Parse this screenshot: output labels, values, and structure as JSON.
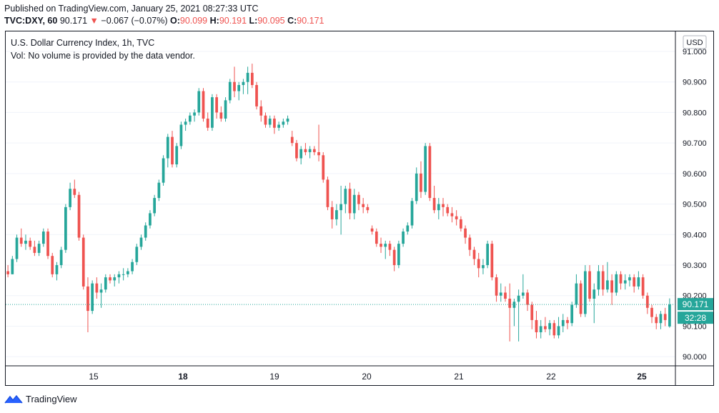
{
  "header": {
    "published": "Published on TradingView.com, January 25, 2021 08:27:33 UTC",
    "symbol": "TVC:DXY, 60",
    "last": "90.171",
    "arrow": "▼",
    "change": "−0.067 (−0.07%)",
    "o_label": "O:",
    "o_value": "90.099",
    "h_label": "H:",
    "h_value": "90.191",
    "l_label": "L:",
    "l_value": "90.095",
    "c_label": "C:",
    "c_value": "90.171"
  },
  "legend": {
    "title": "U.S. Dollar Currency Index, 1h, TVC",
    "volume_note": "Vol: No volume is provided by the data vendor."
  },
  "currency_button": "USD",
  "price_label": "90.171",
  "countdown_label": "32:28",
  "footer": {
    "brand": "TradingView"
  },
  "colors": {
    "up": "#26a69a",
    "down": "#ef5350",
    "text": "#131722",
    "grid": "#f0f3fa"
  },
  "chart_data": {
    "type": "candlestick",
    "title": "U.S. Dollar Currency Index, 1h, TVC",
    "ylim": [
      89.97,
      91.0
    ],
    "y_ticks": [
      "90.000",
      "90.100",
      "90.200",
      "90.300",
      "90.400",
      "90.500",
      "90.600",
      "90.700",
      "90.800",
      "90.900",
      "91.000"
    ],
    "x_ticks": [
      {
        "label": "15",
        "bold": false
      },
      {
        "label": "18",
        "bold": true
      },
      {
        "label": "19",
        "bold": false
      },
      {
        "label": "20",
        "bold": false
      },
      {
        "label": "21",
        "bold": false
      },
      {
        "label": "22",
        "bold": false
      },
      {
        "label": "25",
        "bold": true
      }
    ],
    "last_price": 90.171,
    "ohlc": [
      [
        90.28,
        90.3,
        90.26,
        90.27
      ],
      [
        90.27,
        90.33,
        90.27,
        90.32
      ],
      [
        90.32,
        90.4,
        90.31,
        90.39
      ],
      [
        90.39,
        90.42,
        90.36,
        90.37
      ],
      [
        90.37,
        90.4,
        90.35,
        90.38
      ],
      [
        90.38,
        90.39,
        90.35,
        90.36
      ],
      [
        90.36,
        90.38,
        90.33,
        90.34
      ],
      [
        90.34,
        90.38,
        90.33,
        90.37
      ],
      [
        90.37,
        90.42,
        90.36,
        90.41
      ],
      [
        90.41,
        90.42,
        90.32,
        90.33
      ],
      [
        90.33,
        90.34,
        90.26,
        90.27
      ],
      [
        90.27,
        90.31,
        90.25,
        90.3
      ],
      [
        90.3,
        90.36,
        90.29,
        90.35
      ],
      [
        90.35,
        90.5,
        90.34,
        90.49
      ],
      [
        90.49,
        90.57,
        90.48,
        90.55
      ],
      [
        90.55,
        90.58,
        90.52,
        90.53
      ],
      [
        90.53,
        90.54,
        90.38,
        90.39
      ],
      [
        90.39,
        90.4,
        90.22,
        90.23
      ],
      [
        90.23,
        90.26,
        90.08,
        90.15
      ],
      [
        90.15,
        90.25,
        90.14,
        90.24
      ],
      [
        90.24,
        90.26,
        90.19,
        90.21
      ],
      [
        90.21,
        90.24,
        90.16,
        90.22
      ],
      [
        90.22,
        90.27,
        90.21,
        90.26
      ],
      [
        90.26,
        90.27,
        90.24,
        90.25
      ],
      [
        90.25,
        90.27,
        90.23,
        90.26
      ],
      [
        90.26,
        90.28,
        90.24,
        90.27
      ],
      [
        90.27,
        90.29,
        90.25,
        90.27
      ],
      [
        90.27,
        90.29,
        90.26,
        90.28
      ],
      [
        90.28,
        90.32,
        90.27,
        90.31
      ],
      [
        90.31,
        90.37,
        90.3,
        90.36
      ],
      [
        90.36,
        90.4,
        90.35,
        90.39
      ],
      [
        90.39,
        90.44,
        90.38,
        90.43
      ],
      [
        90.43,
        90.48,
        90.42,
        90.47
      ],
      [
        90.47,
        90.53,
        90.46,
        90.52
      ],
      [
        90.52,
        90.58,
        90.51,
        90.57
      ],
      [
        90.57,
        90.66,
        90.56,
        90.65
      ],
      [
        90.65,
        90.73,
        90.62,
        90.72
      ],
      [
        90.72,
        90.74,
        90.62,
        90.63
      ],
      [
        90.63,
        90.7,
        90.62,
        90.69
      ],
      [
        90.69,
        90.77,
        90.68,
        90.76
      ],
      [
        90.76,
        90.78,
        90.74,
        90.77
      ],
      [
        90.77,
        90.8,
        90.76,
        90.79
      ],
      [
        90.79,
        90.81,
        90.77,
        90.8
      ],
      [
        90.8,
        90.88,
        90.79,
        90.87
      ],
      [
        90.87,
        90.88,
        90.77,
        90.78
      ],
      [
        90.78,
        90.8,
        90.74,
        90.75
      ],
      [
        90.75,
        90.86,
        90.74,
        90.85
      ],
      [
        90.85,
        90.86,
        90.78,
        90.8
      ],
      [
        90.8,
        90.82,
        90.77,
        90.78
      ],
      [
        90.78,
        90.85,
        90.77,
        90.84
      ],
      [
        90.84,
        90.91,
        90.83,
        90.9
      ],
      [
        90.9,
        90.95,
        90.85,
        90.87
      ],
      [
        90.87,
        90.9,
        90.84,
        90.89
      ],
      [
        90.89,
        90.91,
        90.86,
        90.9
      ],
      [
        90.9,
        90.95,
        90.86,
        90.93
      ],
      [
        90.93,
        90.96,
        90.88,
        90.89
      ],
      [
        90.89,
        90.9,
        90.81,
        90.82
      ],
      [
        90.82,
        90.84,
        90.77,
        90.79
      ],
      [
        90.79,
        90.8,
        90.75,
        90.76
      ],
      [
        90.76,
        90.79,
        90.75,
        90.78
      ],
      [
        90.78,
        90.79,
        90.73,
        90.75
      ],
      [
        90.75,
        90.77,
        90.74,
        90.76
      ],
      [
        90.76,
        90.78,
        90.75,
        90.77
      ],
      [
        90.77,
        90.79,
        90.76,
        90.78
      ],
      [
        90.72,
        90.74,
        90.69,
        90.7
      ],
      [
        90.7,
        90.71,
        90.64,
        90.65
      ],
      [
        90.65,
        90.69,
        90.63,
        90.68
      ],
      [
        90.68,
        90.7,
        90.66,
        90.67
      ],
      [
        90.67,
        90.69,
        90.65,
        90.68
      ],
      [
        90.68,
        90.69,
        90.66,
        90.67
      ],
      [
        90.67,
        90.76,
        90.64,
        90.66
      ],
      [
        90.66,
        90.67,
        90.57,
        90.58
      ],
      [
        90.58,
        90.59,
        90.48,
        90.49
      ],
      [
        90.49,
        90.51,
        90.42,
        90.45
      ],
      [
        90.45,
        90.5,
        90.43,
        90.48
      ],
      [
        90.48,
        90.56,
        90.4,
        90.5
      ],
      [
        90.5,
        90.56,
        90.47,
        90.55
      ],
      [
        90.55,
        90.57,
        90.45,
        90.47
      ],
      [
        90.47,
        90.55,
        90.45,
        90.53
      ],
      [
        90.53,
        90.54,
        90.48,
        90.5
      ],
      [
        90.5,
        90.52,
        90.47,
        90.49
      ],
      [
        90.49,
        90.5,
        90.47,
        90.48
      ],
      [
        90.42,
        90.43,
        90.4,
        90.41
      ],
      [
        90.41,
        90.42,
        90.36,
        90.37
      ],
      [
        90.37,
        90.39,
        90.34,
        90.36
      ],
      [
        90.36,
        90.38,
        90.32,
        90.37
      ],
      [
        90.37,
        90.38,
        90.33,
        90.35
      ],
      [
        90.35,
        90.36,
        90.28,
        90.3
      ],
      [
        90.3,
        90.38,
        90.29,
        90.37
      ],
      [
        90.37,
        90.42,
        90.36,
        90.41
      ],
      [
        90.41,
        90.44,
        90.4,
        90.43
      ],
      [
        90.43,
        90.52,
        90.42,
        90.51
      ],
      [
        90.51,
        90.62,
        90.5,
        90.6
      ],
      [
        90.6,
        90.64,
        90.52,
        90.54
      ],
      [
        90.54,
        90.7,
        90.53,
        90.69
      ],
      [
        90.69,
        90.7,
        90.51,
        90.52
      ],
      [
        90.52,
        90.56,
        90.47,
        90.48
      ],
      [
        90.48,
        90.52,
        90.45,
        90.5
      ],
      [
        90.5,
        90.52,
        90.46,
        90.49
      ],
      [
        90.49,
        90.5,
        90.46,
        90.47
      ],
      [
        90.47,
        90.49,
        90.44,
        90.46
      ],
      [
        90.46,
        90.48,
        90.43,
        90.45
      ],
      [
        90.45,
        90.46,
        90.41,
        90.42
      ],
      [
        90.42,
        90.43,
        90.37,
        90.39
      ],
      [
        90.39,
        90.4,
        90.33,
        90.35
      ],
      [
        90.35,
        90.36,
        90.3,
        90.32
      ],
      [
        90.32,
        90.34,
        90.26,
        90.29
      ],
      [
        90.29,
        90.32,
        90.27,
        90.3
      ],
      [
        90.3,
        90.38,
        90.29,
        90.37
      ],
      [
        90.37,
        90.38,
        90.25,
        90.26
      ],
      [
        90.26,
        90.27,
        90.18,
        90.2
      ],
      [
        90.2,
        90.24,
        90.18,
        90.21
      ],
      [
        90.21,
        90.23,
        90.18,
        90.19
      ],
      [
        90.19,
        90.24,
        90.05,
        90.16
      ],
      [
        90.16,
        90.19,
        90.1,
        90.18
      ],
      [
        90.18,
        90.22,
        90.05,
        90.2
      ],
      [
        90.2,
        90.27,
        90.19,
        90.21
      ],
      [
        90.21,
        90.22,
        90.15,
        90.17
      ],
      [
        90.17,
        90.18,
        90.09,
        90.12
      ],
      [
        90.12,
        90.15,
        90.06,
        90.08
      ],
      [
        90.08,
        90.12,
        90.06,
        90.1
      ],
      [
        90.1,
        90.13,
        90.08,
        90.09
      ],
      [
        90.09,
        90.12,
        90.07,
        90.11
      ],
      [
        90.11,
        90.12,
        90.06,
        90.07
      ],
      [
        90.07,
        90.13,
        90.06,
        90.1
      ],
      [
        90.1,
        90.14,
        90.08,
        90.12
      ],
      [
        90.12,
        90.13,
        90.09,
        90.11
      ],
      [
        90.11,
        90.18,
        90.1,
        90.17
      ],
      [
        90.17,
        90.27,
        90.16,
        90.24
      ],
      [
        90.24,
        90.25,
        90.13,
        90.14
      ],
      [
        90.14,
        90.3,
        90.13,
        90.28
      ],
      [
        90.28,
        90.3,
        90.18,
        90.19
      ],
      [
        90.19,
        90.24,
        90.11,
        90.22
      ],
      [
        90.22,
        90.3,
        90.2,
        90.28
      ],
      [
        90.28,
        90.3,
        90.2,
        90.22
      ],
      [
        90.22,
        90.31,
        90.21,
        90.25
      ],
      [
        90.25,
        90.27,
        90.17,
        90.21
      ],
      [
        90.21,
        90.28,
        90.2,
        90.27
      ],
      [
        90.27,
        90.28,
        90.22,
        90.24
      ],
      [
        90.24,
        90.27,
        90.22,
        90.25
      ],
      [
        90.25,
        90.27,
        90.23,
        90.26
      ],
      [
        90.26,
        90.27,
        90.21,
        90.23
      ],
      [
        90.23,
        90.28,
        90.22,
        90.26
      ],
      [
        90.26,
        90.27,
        90.19,
        90.2
      ],
      [
        90.2,
        90.21,
        90.14,
        90.16
      ],
      [
        90.16,
        90.17,
        90.11,
        90.13
      ],
      [
        90.13,
        90.14,
        90.09,
        90.11
      ],
      [
        90.11,
        90.15,
        90.09,
        90.14
      ],
      [
        90.14,
        90.16,
        90.1,
        90.12
      ],
      [
        90.099,
        90.191,
        90.095,
        90.171
      ]
    ]
  }
}
